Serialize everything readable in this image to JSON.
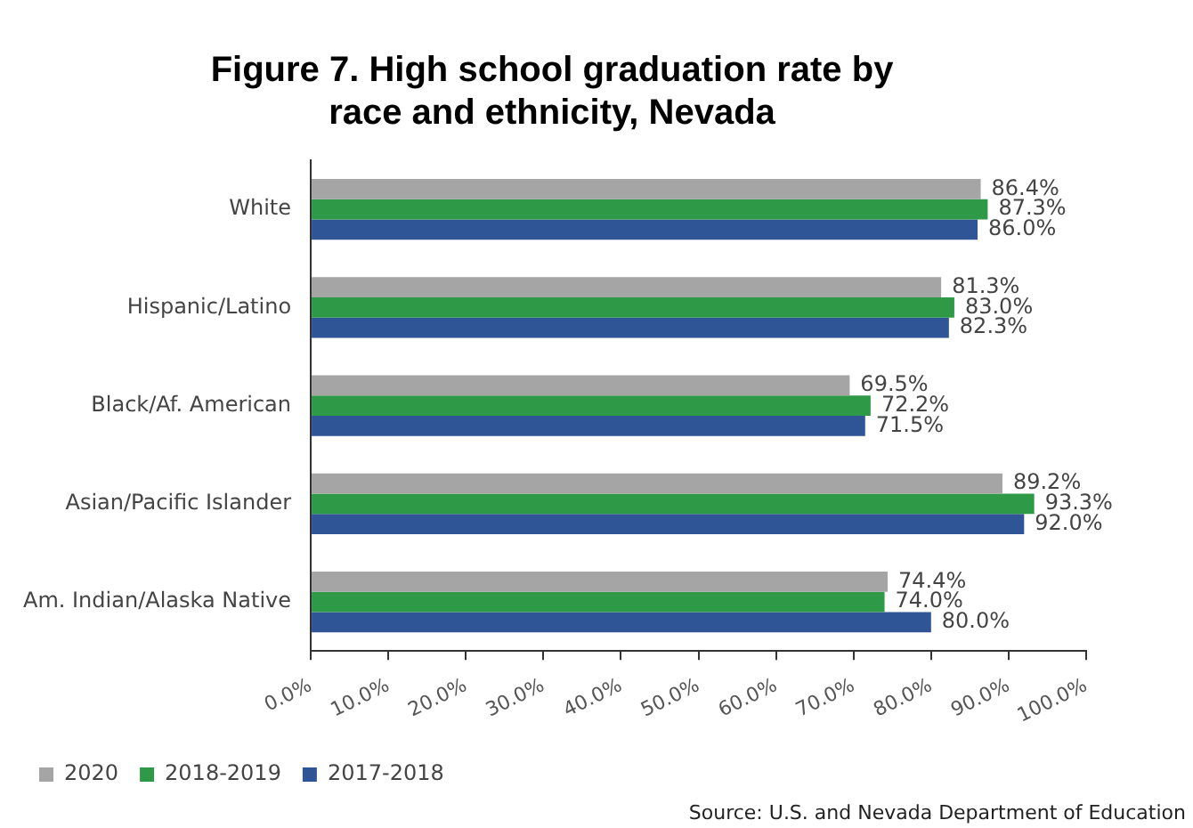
{
  "chart_data": {
    "type": "bar",
    "orientation": "horizontal",
    "title": "Figure 7. High school graduation rate by race and ethnicity, Nevada",
    "categories": [
      "White",
      "Hispanic/Latino",
      "Black/Af. American",
      "Asian/Pacific Islander",
      "Am. Indian/Alaska Native"
    ],
    "series": [
      {
        "name": "2020",
        "color": "#a5a5a5",
        "values": [
          86.4,
          81.3,
          69.5,
          89.2,
          74.4
        ],
        "value_labels": [
          "86.4%",
          "81.3%",
          "69.5%",
          "89.2%",
          "74.4%"
        ]
      },
      {
        "name": "2018-2019",
        "color": "#2e9a47",
        "values": [
          87.3,
          83.0,
          72.2,
          93.3,
          74.0
        ],
        "value_labels": [
          "87.3%",
          "83.0%",
          "72.2%",
          "93.3%",
          "74.0%"
        ]
      },
      {
        "name": "2017-2018",
        "color": "#2f5597",
        "values": [
          86.0,
          82.3,
          71.5,
          92.0,
          80.0
        ],
        "value_labels": [
          "86.0%",
          "82.3%",
          "71.5%",
          "92.0%",
          "80.0%"
        ]
      }
    ],
    "xlim": [
      0,
      100
    ],
    "xticks": [
      {
        "value": 0,
        "label": "0.0%"
      },
      {
        "value": 10,
        "label": "10.0%"
      },
      {
        "value": 20,
        "label": "20.0%"
      },
      {
        "value": 30,
        "label": "30.0%"
      },
      {
        "value": 40,
        "label": "40.0%"
      },
      {
        "value": 50,
        "label": "50.0%"
      },
      {
        "value": 60,
        "label": "60.0%"
      },
      {
        "value": 70,
        "label": "70.0%"
      },
      {
        "value": 80,
        "label": "80.0%"
      },
      {
        "value": 90,
        "label": "90.0%"
      },
      {
        "value": 100,
        "label": "100.0%"
      }
    ],
    "grid": false,
    "legend": "bottom left",
    "annotations": [
      "Source: U.S. and Nevada Department of Education"
    ]
  }
}
